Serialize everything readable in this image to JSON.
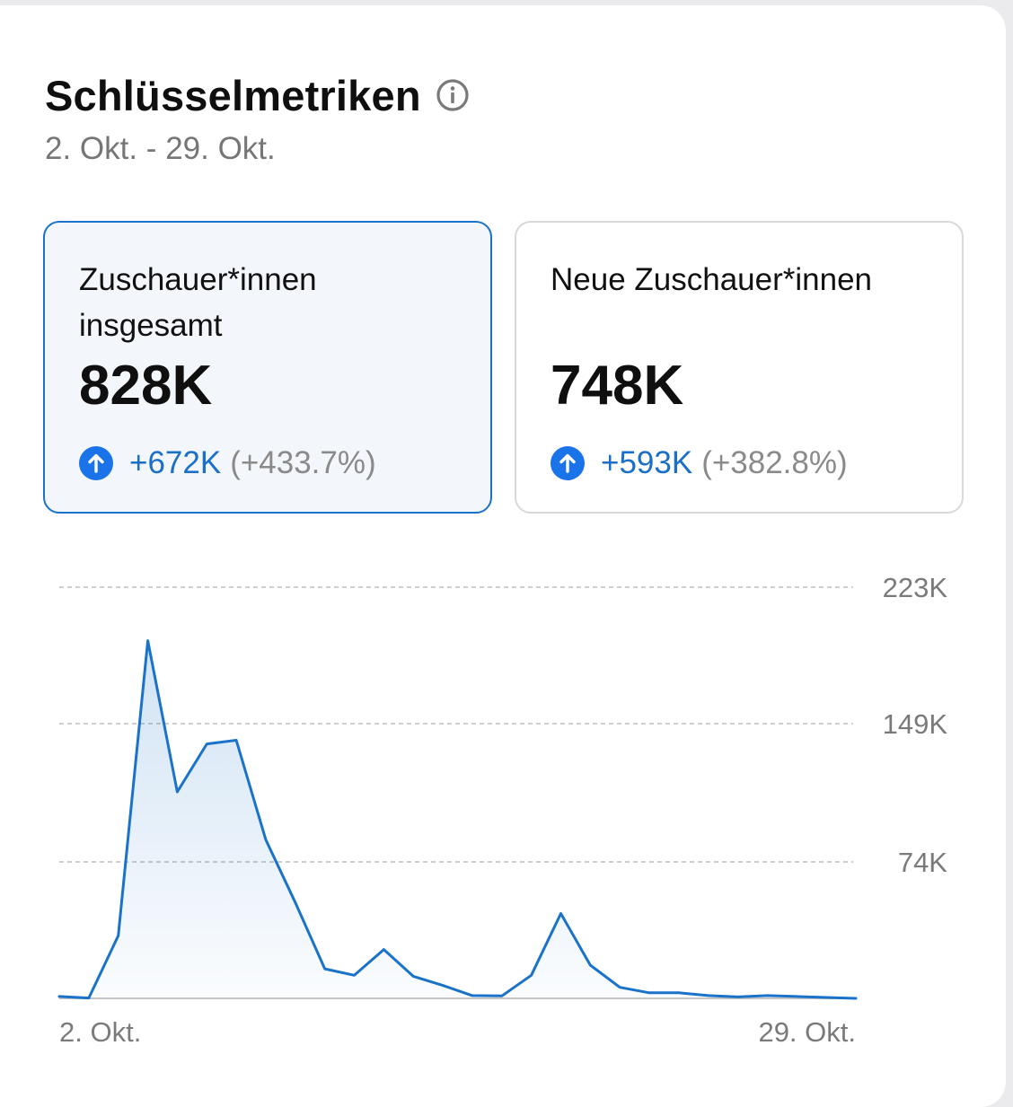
{
  "header": {
    "title": "Schlüsselmetriken",
    "date_range": "2. Okt. - 29. Okt."
  },
  "metrics": [
    {
      "label": "Zuschauer*innen insgesamt",
      "value": "828K",
      "delta": "+672K",
      "percent": "(+433.7%)",
      "selected": true
    },
    {
      "label": "Neue Zuschauer*innen",
      "value": "748K",
      "delta": "+593K",
      "percent": "(+382.8%)",
      "selected": false
    }
  ],
  "colors": {
    "accent": "#1a73c9",
    "grid": "#bdbdbd",
    "axis": "#c6c6c6"
  },
  "chart_data": {
    "type": "area",
    "title": "",
    "xlabel": "",
    "ylabel": "",
    "x": [
      "2. Okt.",
      "3. Okt.",
      "4. Okt.",
      "5. Okt.",
      "6. Okt.",
      "7. Okt.",
      "8. Okt.",
      "9. Okt.",
      "10. Okt.",
      "11. Okt.",
      "12. Okt.",
      "13. Okt.",
      "14. Okt.",
      "15. Okt.",
      "16. Okt.",
      "17. Okt.",
      "18. Okt.",
      "19. Okt.",
      "20. Okt.",
      "21. Okt.",
      "22. Okt.",
      "23. Okt.",
      "24. Okt.",
      "25. Okt.",
      "26. Okt.",
      "27. Okt.",
      "28. Okt.",
      "29. Okt."
    ],
    "series": [
      {
        "name": "Zuschauer*innen insgesamt",
        "values": [
          1000,
          200,
          34000,
          194000,
          112000,
          138000,
          140000,
          86000,
          52000,
          16000,
          12500,
          26500,
          12000,
          7000,
          1500,
          1300,
          12500,
          46000,
          18000,
          6000,
          3000,
          3000,
          1500,
          800,
          1500,
          1000,
          500,
          0
        ]
      }
    ],
    "ylim": [
      0,
      223000
    ],
    "y_ticks": [
      74000,
      149000,
      223000
    ],
    "y_tick_labels": [
      "74K",
      "149K",
      "223K"
    ],
    "x_tick_labels": [
      "2. Okt.",
      "29. Okt."
    ],
    "grid": true,
    "legend": "none"
  }
}
